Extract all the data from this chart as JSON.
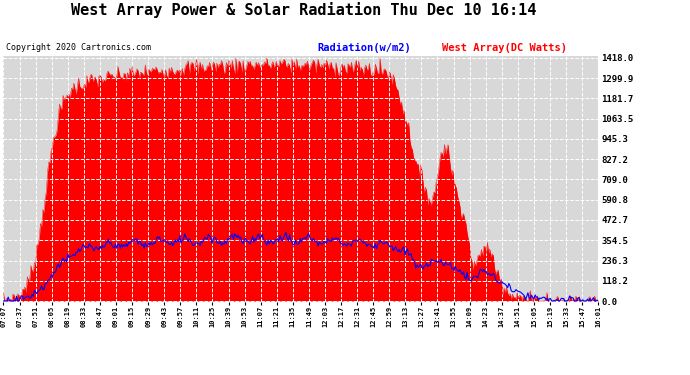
{
  "title": "West Array Power & Solar Radiation Thu Dec 10 16:14",
  "copyright": "Copyright 2020 Cartronics.com",
  "legend_blue": "Radiation(w/m2)",
  "legend_red": "West Array(DC Watts)",
  "y_ticks": [
    0.0,
    118.2,
    236.3,
    354.5,
    472.7,
    590.8,
    709.0,
    827.2,
    945.3,
    1063.5,
    1181.7,
    1299.9,
    1418.0
  ],
  "ymax": 1418.0,
  "ymin": 0.0,
  "background_color": "#ffffff",
  "plot_bg_color": "#d8d8d8",
  "grid_color": "#ffffff",
  "red_color": "#ff0000",
  "blue_color": "#0000ff",
  "title_fontsize": 11,
  "x_labels": [
    "07:07",
    "07:37",
    "07:51",
    "08:05",
    "08:19",
    "08:33",
    "08:47",
    "09:01",
    "09:15",
    "09:29",
    "09:43",
    "09:57",
    "10:11",
    "10:25",
    "10:39",
    "10:53",
    "11:07",
    "11:21",
    "11:35",
    "11:49",
    "12:03",
    "12:17",
    "12:31",
    "12:45",
    "12:59",
    "13:13",
    "13:27",
    "13:41",
    "13:55",
    "14:09",
    "14:23",
    "14:37",
    "14:51",
    "15:05",
    "15:19",
    "15:33",
    "15:47",
    "16:01"
  ]
}
